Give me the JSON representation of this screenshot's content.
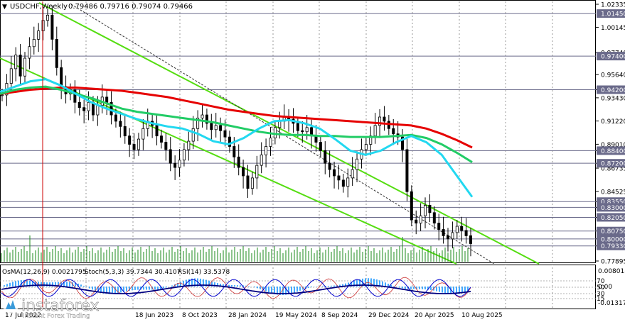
{
  "header": {
    "symbol": "USDCHF,Weekly",
    "ohlc": "0.79486 0.79716 0.79074 0.79466"
  },
  "indicator_header": {
    "osma": "OsMA(12,26,9) 0.0021795",
    "stoch": "Stoch(5,3,3) 39.7344 30.4107",
    "rsi": "RSI(14) 33.5378"
  },
  "watermark": "instaforex",
  "watermark_sub": "Instant Forex Trading",
  "colors": {
    "bull": "#000000",
    "bear": "#000000",
    "ema_red": "#e60000",
    "ema_green": "#22cc66",
    "ema_cyan": "#22d8f0",
    "channel": "#55dd11",
    "level_line": "#6a6a8a",
    "osma": "#44aaff",
    "stoch_main": "#0000cc",
    "stoch_signal": "#cc3333",
    "rsi": "#000080",
    "cursor_line": "#cc0000"
  },
  "chart_data": {
    "type": "line",
    "timeframe": "Weekly",
    "ylim": [
      0.77895,
      1.02335
    ],
    "y_ticks": [
      "1.02335",
      "1.00145",
      "0.97740",
      "0.95640",
      "0.94200",
      "0.93430",
      "0.91220",
      "0.89010",
      "0.88400",
      "0.87200",
      "0.86735",
      "0.84525",
      "0.83550",
      "0.83000",
      "0.82050",
      "0.80750",
      "0.80000",
      "0.79330",
      "0.77895"
    ],
    "highlighted_levels": [
      "1.01450",
      "0.97400",
      "0.94200",
      "0.88400",
      "0.87200",
      "0.83550",
      "0.83000",
      "0.82050",
      "0.80750",
      "0.80000",
      "0.79330"
    ],
    "x_ticks": [
      "17 Jul 2022",
      "18 Jun 2023",
      "8 Oct 2023",
      "28 Jan 2024",
      "19 May 2024",
      "8 Sep 2024",
      "29 Dec 2024",
      "20 Apr 2025",
      "10 Aug 2025"
    ],
    "price_series": [
      0.937,
      0.948,
      0.962,
      0.975,
      0.955,
      0.972,
      0.983,
      0.99,
      0.998,
      1.008,
      1.013,
      0.99,
      0.963,
      0.945,
      0.938,
      0.942,
      0.93,
      0.925,
      0.922,
      0.93,
      0.918,
      0.927,
      0.935,
      0.93,
      0.918,
      0.912,
      0.907,
      0.898,
      0.89,
      0.885,
      0.895,
      0.905,
      0.912,
      0.908,
      0.898,
      0.892,
      0.885,
      0.872,
      0.868,
      0.875,
      0.885,
      0.893,
      0.905,
      0.915,
      0.918,
      0.91,
      0.904,
      0.908,
      0.903,
      0.897,
      0.888,
      0.878,
      0.868,
      0.86,
      0.848,
      0.858,
      0.87,
      0.88,
      0.888,
      0.896,
      0.906,
      0.912,
      0.916,
      0.914,
      0.91,
      0.903,
      0.902,
      0.906,
      0.898,
      0.892,
      0.884,
      0.872,
      0.866,
      0.86,
      0.856,
      0.85,
      0.858,
      0.866,
      0.876,
      0.885,
      0.89,
      0.898,
      0.908,
      0.916,
      0.912,
      0.905,
      0.9,
      0.897,
      0.885,
      0.845,
      0.818,
      0.815,
      0.822,
      0.832,
      0.825,
      0.815,
      0.809,
      0.803,
      0.8,
      0.806,
      0.812,
      0.808,
      0.803,
      0.7955
    ],
    "series": [
      {
        "name": "",
        "color_key": "ema_red",
        "values": [
          0.938,
          0.94,
          0.942,
          0.943,
          0.944,
          0.944,
          0.943,
          0.942,
          0.941,
          0.939,
          0.937,
          0.935,
          0.932,
          0.929,
          0.926,
          0.923,
          0.921,
          0.919,
          0.917,
          0.916,
          0.915,
          0.914,
          0.913,
          0.912,
          0.911,
          0.91,
          0.909,
          0.908,
          0.905,
          0.9,
          0.894,
          0.887
        ]
      },
      {
        "name": "",
        "color_key": "ema_green",
        "values": [
          0.938,
          0.942,
          0.944,
          0.945,
          0.942,
          0.938,
          0.934,
          0.929,
          0.924,
          0.921,
          0.919,
          0.917,
          0.915,
          0.913,
          0.911,
          0.908,
          0.905,
          0.902,
          0.9,
          0.899,
          0.899,
          0.898,
          0.898,
          0.897,
          0.897,
          0.897,
          0.898,
          0.899,
          0.896,
          0.89,
          0.882,
          0.873
        ]
      },
      {
        "name": "",
        "color_key": "ema_cyan",
        "values": [
          0.94,
          0.945,
          0.95,
          0.952,
          0.946,
          0.938,
          0.93,
          0.924,
          0.919,
          0.914,
          0.91,
          0.907,
          0.905,
          0.9,
          0.893,
          0.89,
          0.896,
          0.905,
          0.912,
          0.913,
          0.91,
          0.905,
          0.895,
          0.884,
          0.88,
          0.884,
          0.892,
          0.898,
          0.892,
          0.88,
          0.86,
          0.84
        ]
      }
    ],
    "osma_scale": [
      "0.008018",
      "0.00",
      "-0.013174"
    ],
    "oscillator_levels": [
      "70",
      "50",
      "30",
      "15"
    ]
  }
}
